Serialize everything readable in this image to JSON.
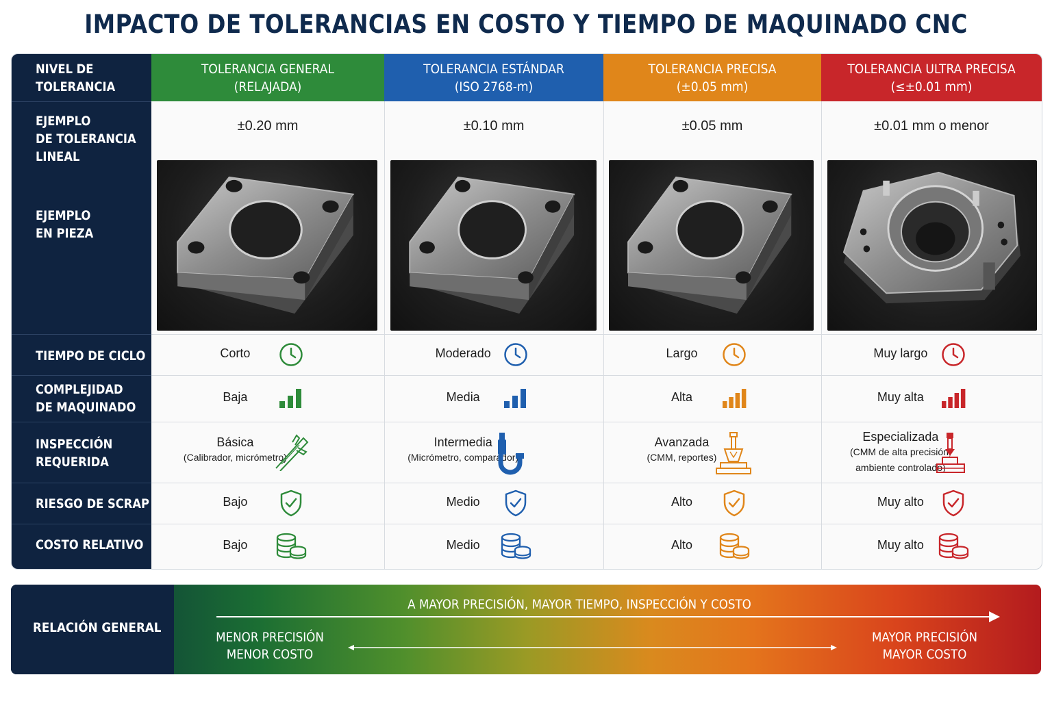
{
  "title": "IMPACTO DE TOLERANCIAS EN COSTO Y TIEMPO DE MAQUINADO CNC",
  "row_labels": {
    "nivel": "NIVEL DE\nTOLERANCIA",
    "ejemplo_tol": "EJEMPLO\nDE TOLERANCIA\nLINEAL",
    "ejemplo_pieza": "EJEMPLO\nEN PIEZA",
    "tiempo": "TIEMPO DE CICLO",
    "complejidad": "COMPLEJIDAD\nDE MAQUINADO",
    "inspeccion": "INSPECCIÓN\nREQUERIDA",
    "riesgo": "RIESGO DE SCRAP",
    "costo": "COSTO RELATIVO"
  },
  "columns": [
    {
      "header_line1": "TOLERANCIA GENERAL",
      "header_line2": "(RELAJADA)",
      "color": "#2e8b3a",
      "tolerance": "±0.20 mm",
      "tiempo": "Corto",
      "complejidad": "Baja",
      "complexity_level": 1,
      "inspeccion": "Básica",
      "inspeccion_detail": "(Calibrador, micrómetro)",
      "inspeccion_icon": "caliper-icon",
      "riesgo": "Bajo",
      "costo": "Bajo"
    },
    {
      "header_line1": "TOLERANCIA ESTÁNDAR",
      "header_line2": "(ISO 2768-m)",
      "color": "#1f5fae",
      "tolerance": "±0.10 mm",
      "tiempo": "Moderado",
      "complejidad": "Media",
      "complexity_level": 2,
      "inspeccion": "Intermedia",
      "inspeccion_detail": "(Micrómetro, comparador)",
      "inspeccion_icon": "micrometer-icon",
      "riesgo": "Medio",
      "costo": "Medio"
    },
    {
      "header_line1": "TOLERANCIA PRECISA",
      "header_line2": "(±0.05 mm)",
      "color": "#e0861a",
      "tolerance": "±0.05 mm",
      "tiempo": "Largo",
      "complejidad": "Alta",
      "complexity_level": 3,
      "inspeccion": "Avanzada",
      "inspeccion_detail": "(CMM, reportes)",
      "inspeccion_icon": "cmm-icon",
      "riesgo": "Alto",
      "costo": "Alto"
    },
    {
      "header_line1": "TOLERANCIA ULTRA PRECISA",
      "header_line2": "(≤±0.01 mm)",
      "color": "#c8262a",
      "tolerance": "±0.01 mm o menor",
      "tiempo": "Muy largo",
      "complejidad": "Muy alta",
      "complexity_level": 4,
      "inspeccion": "Especializada",
      "inspeccion_detail": "(CMM de alta precisión,\nambiente controlado)",
      "inspeccion_icon": "cmm-precision-icon",
      "riesgo": "Muy alto",
      "costo": "Muy alto"
    }
  ],
  "bottom": {
    "label": "RELACIÓN GENERAL",
    "headline": "A MAYOR PRECISIÓN, MAYOR TIEMPO, INSPECCIÓN Y COSTO",
    "left_line1": "MENOR PRECISIÓN",
    "left_line2": "MENOR COSTO",
    "right_line1": "MAYOR PRECISIÓN",
    "right_line2": "MAYOR COSTO"
  }
}
